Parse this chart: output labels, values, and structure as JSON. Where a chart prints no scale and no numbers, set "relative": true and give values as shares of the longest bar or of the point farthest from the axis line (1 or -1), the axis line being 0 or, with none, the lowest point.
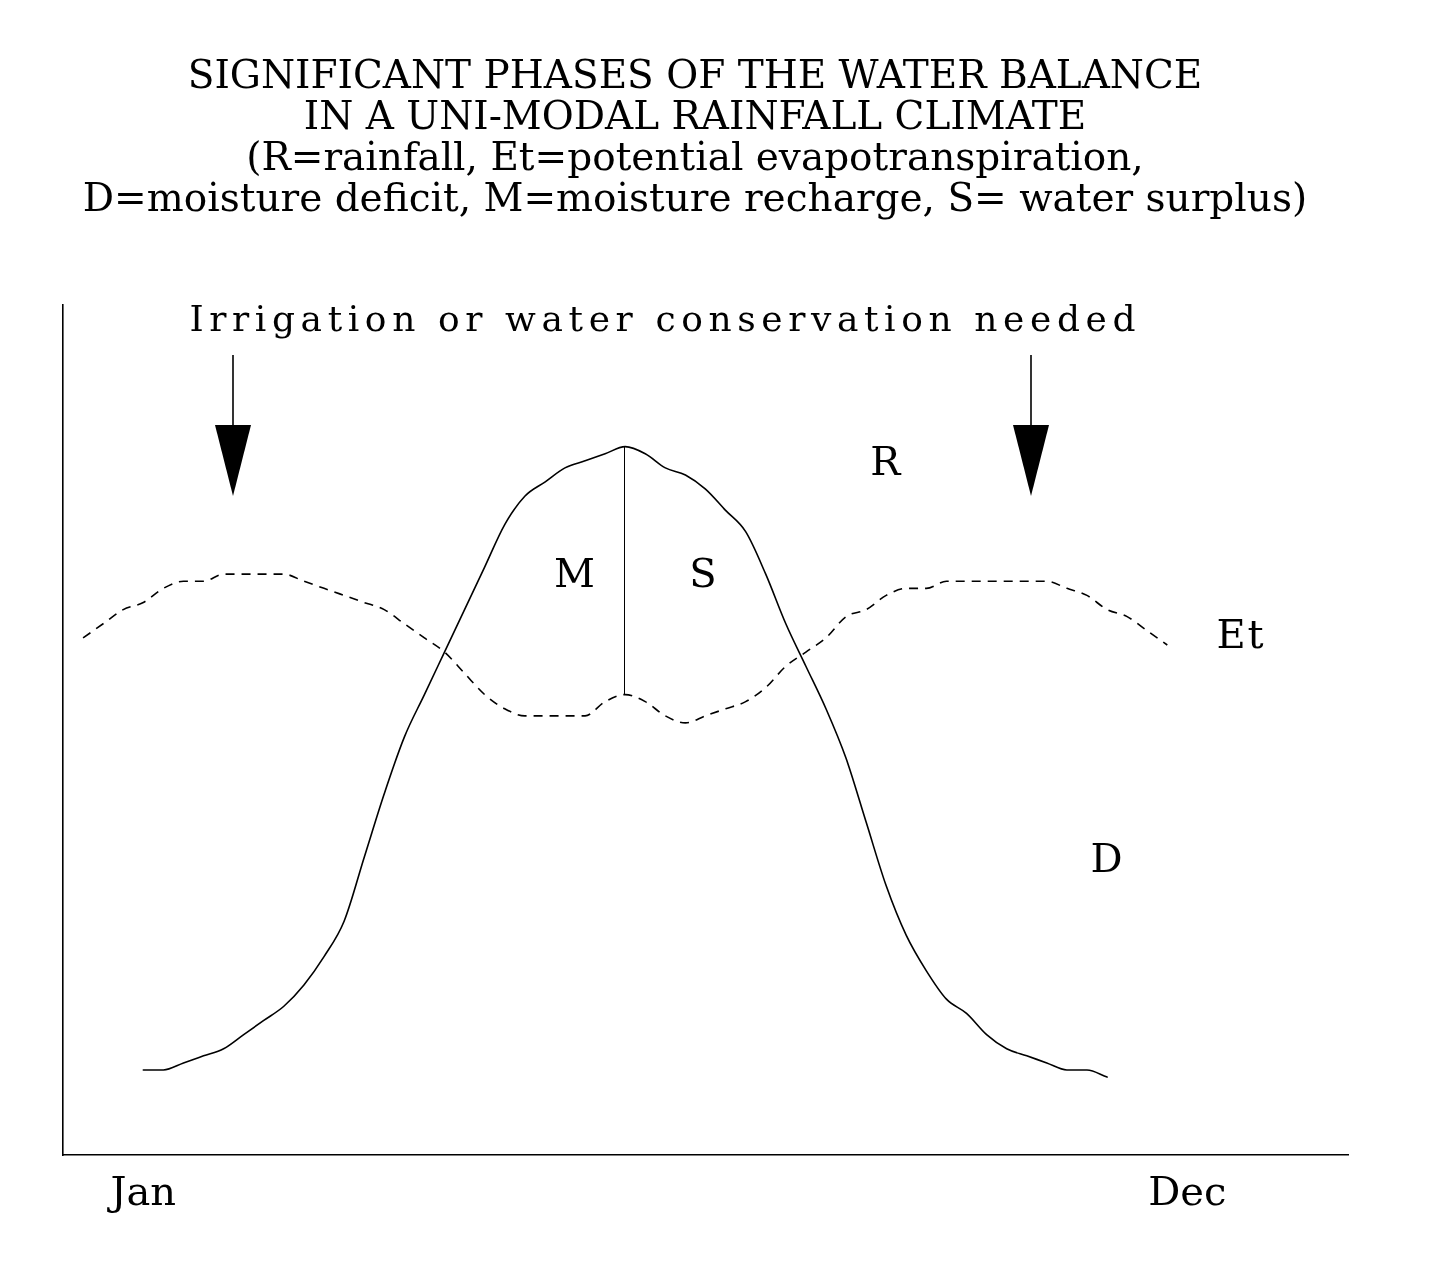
{
  "chart_data": {
    "type": "line",
    "title": "SIGNIFICANT PHASES OF THE WATER BALANCE\nIN A UNI-MODAL RAINFALL CLIMATE",
    "subtitle": "(R=rainfall, Et=potential evapotranspiration,\nD=moisture deficit, M=moisture recharge, S= water surplus)",
    "relative": true,
    "categories": [
      null,
      null,
      null,
      null,
      "Jan",
      null,
      null,
      null,
      null,
      null,
      null,
      null,
      null,
      null,
      null,
      null,
      null,
      null,
      null,
      null,
      null,
      null,
      null,
      null,
      null,
      null,
      null,
      null,
      null,
      null,
      null,
      null,
      null,
      null,
      null,
      null,
      null,
      null,
      null,
      null,
      null,
      null,
      null,
      null,
      null,
      null,
      null,
      null,
      null,
      null,
      null,
      null,
      null,
      null,
      null,
      null,
      "Dec",
      null,
      null,
      null,
      null,
      null,
      null,
      null,
      null
    ],
    "series": [
      {
        "color": "#000000",
        "values": [
          null,
          null,
          null,
          null,
          0.12,
          0.12,
          0.13,
          0.14,
          0.15,
          0.17,
          0.19,
          0.21,
          0.24,
          0.28,
          0.33,
          0.42,
          0.51,
          0.59,
          0.65,
          0.71,
          0.77,
          0.83,
          0.89,
          0.93,
          0.95,
          0.97,
          0.98,
          0.99,
          1.0,
          0.99,
          0.97,
          0.96,
          0.94,
          0.91,
          0.88,
          0.82,
          0.75,
          0.69,
          0.63,
          0.56,
          0.47,
          0.38,
          0.31,
          0.26,
          0.22,
          0.2,
          0.17,
          0.15,
          0.14,
          0.13,
          0.12,
          0.12,
          0.11,
          null,
          null,
          null,
          null,
          null,
          null,
          null,
          null,
          null,
          null,
          null,
          null
        ]
      },
      {
        "color": "#000000",
        "line_style": "dashed",
        "values": [
          null,
          0.73,
          0.75,
          0.77,
          0.78,
          0.8,
          0.81,
          0.81,
          0.82,
          0.82,
          0.82,
          0.82,
          0.81,
          0.8,
          0.79,
          0.78,
          0.77,
          0.75,
          0.73,
          0.71,
          0.68,
          0.65,
          0.63,
          0.62,
          0.62,
          0.62,
          0.62,
          0.64,
          0.65,
          0.64,
          0.62,
          0.61,
          0.62,
          0.63,
          0.64,
          0.66,
          0.69,
          0.71,
          0.73,
          0.76,
          0.77,
          0.79,
          0.8,
          0.8,
          0.81,
          0.81,
          0.81,
          0.81,
          0.81,
          0.81,
          0.8,
          0.79,
          0.77,
          0.76,
          0.74,
          0.72,
          null,
          null,
          null,
          null,
          null,
          null,
          null,
          null,
          null
        ]
      }
    ],
    "annotations": [
      "Irrigation or water conservation needed",
      "R",
      "Et",
      "M",
      "S",
      "D"
    ],
    "marker": "none",
    "legend": false,
    "grid": false
  }
}
